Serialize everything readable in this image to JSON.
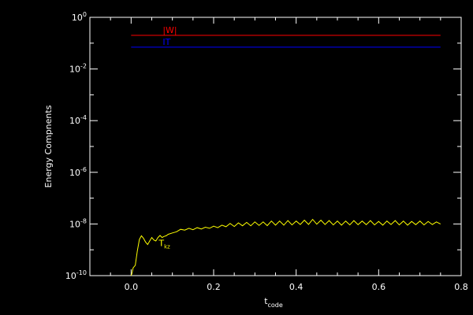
{
  "chart_data": {
    "type": "line",
    "title": "",
    "xlabel": "t",
    "xlabel_sub": "code",
    "ylabel": "Energy Compnents",
    "xlim": [
      -0.1,
      0.8
    ],
    "ylim": [
      1e-10,
      1
    ],
    "yscale": "log",
    "x_ticks": [
      0.0,
      0.2,
      0.4,
      0.6,
      0.8
    ],
    "x_tick_labels": [
      "0.0",
      "0.2",
      "0.4",
      "0.6",
      "0.8"
    ],
    "y_ticks": [
      1e-10,
      1e-08,
      1e-06,
      0.0001,
      0.01,
      1
    ],
    "y_tick_labels": [
      {
        "base": "10",
        "exp": "-10"
      },
      {
        "base": "10",
        "exp": "-8"
      },
      {
        "base": "10",
        "exp": "-6"
      },
      {
        "base": "10",
        "exp": "-4"
      },
      {
        "base": "10",
        "exp": "-2"
      },
      {
        "base": "10",
        "exp": "0"
      }
    ],
    "grid": false,
    "background": "#000000",
    "series": [
      {
        "name": "|W|",
        "color": "#ff0000",
        "x": [
          0.0,
          0.75
        ],
        "y": [
          0.2,
          0.2
        ]
      },
      {
        "name": "IT",
        "color": "#0000ff",
        "x": [
          0.0,
          0.75
        ],
        "y": [
          0.07,
          0.07
        ]
      },
      {
        "name": "T",
        "label_sub": "kz",
        "color": "#ffff00",
        "x": [
          0.0,
          0.002,
          0.005,
          0.01,
          0.015,
          0.02,
          0.025,
          0.03,
          0.035,
          0.04,
          0.045,
          0.05,
          0.055,
          0.06,
          0.065,
          0.07,
          0.075,
          0.08,
          0.085,
          0.09,
          0.1,
          0.11,
          0.12,
          0.13,
          0.14,
          0.15,
          0.16,
          0.17,
          0.18,
          0.19,
          0.2,
          0.21,
          0.22,
          0.23,
          0.24,
          0.25,
          0.26,
          0.27,
          0.28,
          0.29,
          0.3,
          0.31,
          0.32,
          0.33,
          0.34,
          0.35,
          0.36,
          0.37,
          0.38,
          0.39,
          0.4,
          0.41,
          0.42,
          0.43,
          0.44,
          0.45,
          0.46,
          0.47,
          0.48,
          0.49,
          0.5,
          0.51,
          0.52,
          0.53,
          0.54,
          0.55,
          0.56,
          0.57,
          0.58,
          0.59,
          0.6,
          0.61,
          0.62,
          0.63,
          0.64,
          0.65,
          0.66,
          0.67,
          0.68,
          0.69,
          0.7,
          0.71,
          0.72,
          0.73,
          0.74,
          0.75
        ],
        "y": [
          1e-10,
          1.2e-10,
          2e-10,
          2.5e-10,
          9e-10,
          2.5e-09,
          3.5e-09,
          2.8e-09,
          2e-09,
          1.6e-09,
          2.2e-09,
          3e-09,
          2.4e-09,
          2.2e-09,
          3e-09,
          3.6e-09,
          3e-09,
          3.3e-09,
          3.5e-09,
          4e-09,
          4.5e-09,
          5e-09,
          6.2e-09,
          5.8e-09,
          6.8e-09,
          6e-09,
          7.2e-09,
          6.4e-09,
          7.5e-09,
          6.8e-09,
          8.2e-09,
          7.2e-09,
          9e-09,
          7.8e-09,
          1.05e-08,
          8e-09,
          1.1e-08,
          8.5e-09,
          1.15e-08,
          8.5e-09,
          1.2e-08,
          8.8e-09,
          1.2e-08,
          8.6e-09,
          1.3e-08,
          9e-09,
          1.3e-08,
          9e-09,
          1.35e-08,
          9.2e-09,
          1.3e-08,
          9.5e-09,
          1.4e-08,
          9.6e-09,
          1.5e-08,
          9.8e-09,
          1.4e-08,
          9.5e-09,
          1.35e-08,
          9.2e-09,
          1.3e-08,
          9e-09,
          1.3e-08,
          9.2e-09,
          1.35e-08,
          9.4e-09,
          1.3e-08,
          9.4e-09,
          1.35e-08,
          9.2e-09,
          1.25e-08,
          9e-09,
          1.3e-08,
          9.5e-09,
          1.35e-08,
          9.2e-09,
          1.3e-08,
          9e-09,
          1.25e-08,
          9.4e-09,
          1.3e-08,
          9.2e-09,
          1.25e-08,
          9.5e-09,
          1.2e-08,
          1e-08
        ]
      }
    ]
  }
}
